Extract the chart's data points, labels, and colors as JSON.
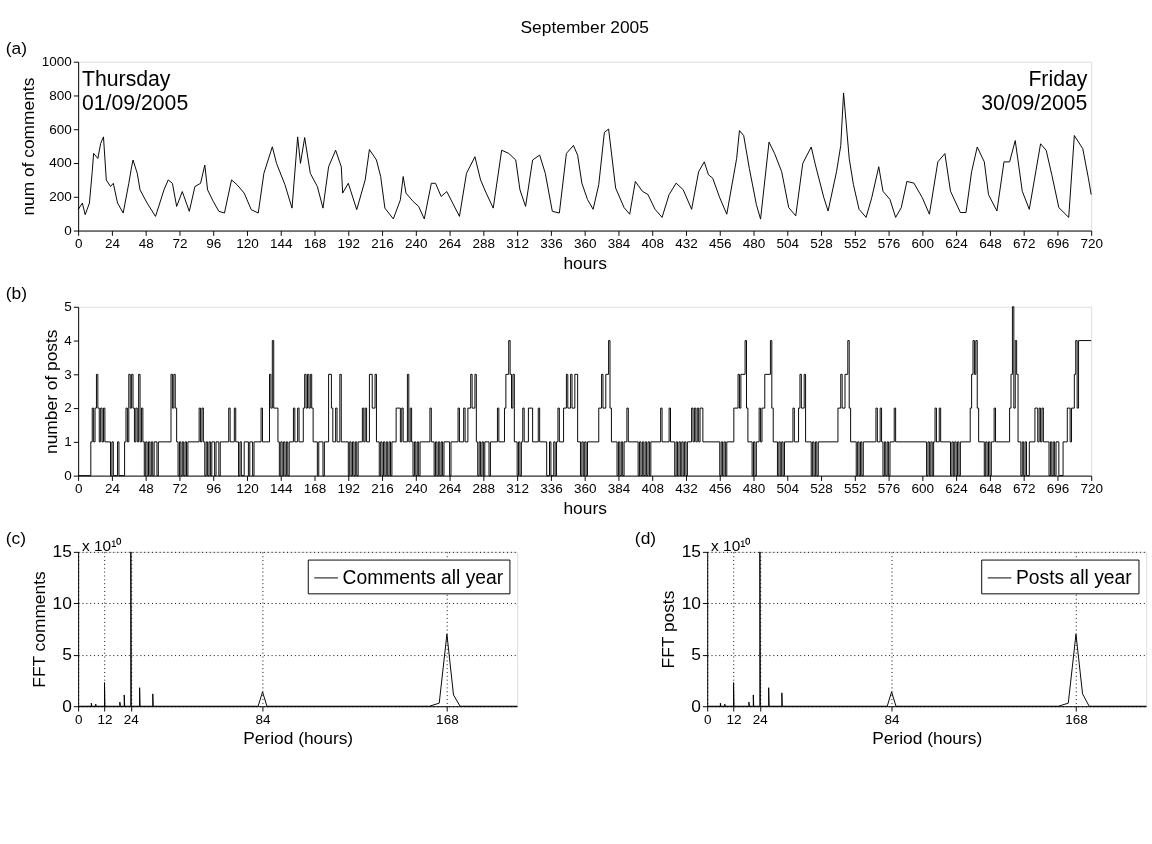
{
  "chart_data": [
    {
      "type": "line",
      "title": "September 2005",
      "xlabel": "hours",
      "ylabel": "num of comments",
      "color": "#000000",
      "annotations": [
        "(a)",
        "Thursday\n01/09/2005",
        "Friday\n30/09/2005"
      ],
      "x": [
        0,
        3,
        5,
        8,
        10,
        11,
        14,
        16,
        18,
        20,
        23,
        25,
        28,
        32,
        36,
        38,
        39,
        42,
        44,
        49,
        55,
        61,
        64,
        67,
        70,
        74,
        79,
        83,
        87,
        90,
        92,
        96,
        100,
        104,
        109,
        113,
        118,
        123,
        128,
        132,
        138,
        141,
        147,
        152,
        156,
        158,
        161,
        165,
        170,
        174,
        178,
        183,
        187,
        188,
        192,
        198,
        204,
        207,
        212,
        215,
        218,
        224,
        229,
        231,
        233,
        238,
        242,
        246,
        251,
        254,
        258,
        262,
        271,
        276,
        282,
        286,
        290,
        295,
        301,
        306,
        311,
        314,
        318,
        323,
        328,
        332,
        337,
        342,
        347,
        352,
        355,
        358,
        362,
        366,
        370,
        374,
        377,
        382,
        388,
        392,
        396,
        401,
        405,
        410,
        415,
        420,
        425,
        430,
        436,
        441,
        445,
        448,
        451,
        456,
        461,
        468,
        470,
        473,
        477,
        482,
        485,
        491,
        495,
        500,
        505,
        510,
        515,
        521,
        524,
        530,
        533,
        539,
        542,
        544,
        548,
        551,
        555,
        560,
        564,
        569,
        572,
        577,
        581,
        585,
        589,
        594,
        600,
        605,
        611,
        616,
        620,
        627,
        631,
        635,
        639,
        644,
        647,
        653,
        658,
        662,
        666,
        671,
        676,
        684,
        688,
        692,
        697,
        704,
        708,
        714,
        718,
        720
      ],
      "values": [
        124,
        163,
        94,
        163,
        349,
        457,
        427,
        516,
        555,
        300,
        261,
        280,
        163,
        104,
        280,
        378,
        418,
        339,
        241,
        163,
        84,
        241,
        300,
        280,
        143,
        231,
        114,
        261,
        280,
        388,
        241,
        173,
        114,
        104,
        300,
        271,
        222,
        124,
        104,
        339,
        496,
        398,
        271,
        133,
        555,
        398,
        551,
        339,
        261,
        133,
        378,
        476,
        378,
        222,
        280,
        124,
        300,
        480,
        418,
        320,
        133,
        69,
        182,
        320,
        222,
        173,
        143,
        69,
        280,
        280,
        202,
        231,
        84,
        339,
        437,
        300,
        222,
        133,
        476,
        457,
        418,
        241,
        143,
        418,
        447,
        339,
        114,
        104,
        457,
        504,
        446,
        281,
        184,
        126,
        272,
        582,
        601,
        252,
        136,
        97,
        291,
        233,
        213,
        126,
        78,
        213,
        281,
        242,
        126,
        349,
        407,
        330,
        310,
        194,
        97,
        427,
        592,
        563,
        369,
        155,
        68,
        524,
        456,
        349,
        136,
        87,
        398,
        495,
        388,
        194,
        116,
        349,
        504,
        815,
        427,
        272,
        126,
        78,
        194,
        378,
        233,
        184,
        78,
        136,
        291,
        281,
        194,
        97,
        407,
        456,
        233,
        107,
        107,
        349,
        495,
        407,
        213,
        116,
        407,
        407,
        533,
        233,
        126,
        514,
        475,
        330,
        136,
        78,
        563,
        485,
        310,
        213
      ],
      "xlim": [
        0,
        720
      ],
      "xticks": [
        0,
        24,
        48,
        72,
        96,
        120,
        144,
        168,
        192,
        216,
        240,
        264,
        288,
        312,
        336,
        360,
        384,
        408,
        432,
        456,
        480,
        504,
        528,
        552,
        576,
        600,
        624,
        648,
        672,
        696,
        720
      ],
      "ylim": [
        0,
        1000
      ],
      "yticks": [
        0,
        200,
        400,
        600,
        800,
        1000
      ]
    },
    {
      "type": "step",
      "xlabel": "hours",
      "ylabel": "number of posts",
      "color": "#000000",
      "annotations": [
        "(b)"
      ],
      "x": [
        0,
        9,
        10,
        11,
        12,
        13,
        14,
        15,
        16,
        17,
        18,
        19,
        23,
        24,
        25,
        28,
        29,
        33,
        34,
        35,
        36,
        37,
        38,
        39,
        40,
        41,
        42,
        43,
        44,
        45,
        46,
        47,
        48,
        49,
        50,
        51,
        52,
        53,
        54,
        56,
        57,
        66,
        67,
        68,
        69,
        70,
        71,
        72,
        73,
        74,
        75,
        76,
        77,
        78,
        86,
        87,
        88,
        89,
        90,
        91,
        92,
        93,
        94,
        95,
        97,
        98,
        100,
        101,
        107,
        108,
        111,
        112,
        114,
        115,
        116,
        118,
        121,
        122,
        124,
        125,
        130,
        131,
        136,
        137,
        138,
        139,
        142,
        143,
        144,
        145,
        146,
        147,
        148,
        149,
        150,
        153,
        154,
        156,
        157,
        160,
        161,
        162,
        163,
        164,
        165,
        166,
        167,
        170,
        171,
        174,
        175,
        178,
        180,
        181,
        183,
        184,
        186,
        187,
        192,
        193,
        194,
        195,
        196,
        197,
        198,
        199,
        202,
        203,
        204,
        205,
        207,
        209,
        211,
        212,
        214,
        215,
        216,
        217,
        218,
        219,
        220,
        221,
        222,
        223,
        226,
        229,
        230,
        231,
        234,
        235,
        236,
        237,
        238,
        239,
        240,
        241,
        242,
        243,
        250,
        251,
        253,
        254,
        255,
        256,
        257,
        258,
        259,
        260,
        264,
        265,
        270,
        271,
        274,
        275,
        277,
        279,
        280,
        282,
        283,
        284,
        285,
        286,
        287,
        288,
        289,
        292,
        293,
        298,
        299,
        303,
        304,
        306,
        307,
        308,
        309,
        310,
        312,
        313,
        314,
        315,
        316,
        317,
        320,
        323,
        327,
        328,
        333,
        335,
        336,
        338,
        339,
        340,
        341,
        342,
        345,
        347,
        348,
        350,
        351,
        353,
        355,
        357,
        358,
        359,
        360,
        361,
        362,
        370,
        372,
        373,
        375,
        377,
        378,
        379,
        383,
        384,
        385,
        386,
        387,
        388,
        390,
        391,
        398,
        399,
        400,
        401,
        402,
        403,
        404,
        405,
        406,
        407,
        414,
        415,
        420,
        421,
        424,
        425,
        426,
        427,
        428,
        429,
        430,
        431,
        432,
        433,
        436,
        437,
        438,
        439,
        440,
        441,
        442,
        444,
        456,
        457,
        458,
        459,
        460,
        461,
        466,
        469,
        470,
        471,
        474,
        475,
        476,
        479,
        480,
        481,
        482,
        484,
        485,
        486,
        488,
        492,
        493,
        494,
        497,
        498,
        499,
        500,
        501,
        502,
        508,
        509,
        512,
        513,
        514,
        516,
        517,
        521,
        522,
        523,
        524,
        525,
        526,
        540,
        542,
        543,
        545,
        547,
        548,
        549,
        553,
        554,
        555,
        556,
        557,
        558,
        567,
        568,
        570,
        571,
        572,
        573,
        574,
        575,
        576,
        577,
        580,
        581,
        603,
        604,
        605,
        606,
        607,
        608,
        609,
        610,
        612,
        613,
        620,
        621,
        622,
        623,
        624,
        625,
        626,
        627,
        634,
        635,
        636,
        637,
        638,
        639,
        640,
        644,
        645,
        646,
        647,
        648,
        649,
        651,
        652,
        662,
        663,
        664,
        665,
        666,
        667,
        668,
        670,
        671,
        672,
        673,
        674,
        676,
        680,
        682,
        683,
        684,
        685,
        686,
        690,
        691,
        692,
        693,
        694,
        695,
        697,
        700,
        703,
        705,
        706,
        708,
        709,
        710,
        711,
        720
      ],
      "values": [
        0,
        1,
        2,
        1,
        2,
        3,
        2,
        1,
        2,
        1,
        2,
        1,
        0,
        1,
        0,
        1,
        0,
        1,
        2,
        1,
        3,
        2,
        3,
        2,
        1,
        2,
        1,
        3,
        1,
        2,
        1,
        0,
        1,
        0,
        1,
        0,
        1,
        0,
        1,
        0,
        1,
        3,
        2,
        3,
        2,
        1,
        0,
        1,
        0,
        1,
        0,
        1,
        0,
        1,
        2,
        1,
        2,
        1,
        0,
        1,
        0,
        1,
        0,
        1,
        0,
        1,
        0,
        1,
        2,
        1,
        2,
        1,
        0,
        1,
        0,
        1,
        0,
        1,
        0,
        1,
        2,
        1,
        3,
        2,
        4,
        2,
        1,
        0,
        1,
        0,
        1,
        0,
        1,
        0,
        1,
        2,
        1,
        2,
        1,
        2,
        3,
        2,
        3,
        2,
        3,
        2,
        1,
        0,
        1,
        0,
        1,
        3,
        2,
        1,
        2,
        1,
        3,
        1,
        0,
        1,
        0,
        1,
        0,
        1,
        0,
        1,
        2,
        1,
        2,
        1,
        3,
        2,
        3,
        1,
        0,
        1,
        0,
        1,
        0,
        1,
        0,
        1,
        0,
        1,
        2,
        1,
        2,
        1,
        3,
        1,
        2,
        1,
        0,
        1,
        0,
        1,
        0,
        1,
        2,
        1,
        0,
        1,
        0,
        1,
        0,
        1,
        0,
        1,
        0,
        1,
        2,
        1,
        2,
        1,
        2,
        3,
        2,
        3,
        1,
        0,
        1,
        0,
        1,
        0,
        1,
        0,
        1,
        2,
        1,
        2,
        3,
        4,
        3,
        2,
        3,
        1,
        0,
        1,
        0,
        1,
        2,
        1,
        2,
        1,
        2,
        1,
        0,
        1,
        0,
        1,
        0,
        1,
        2,
        1,
        2,
        3,
        2,
        3,
        2,
        3,
        1,
        0,
        1,
        0,
        1,
        0,
        1,
        2,
        3,
        2,
        3,
        4,
        2,
        1,
        0,
        1,
        0,
        1,
        0,
        1,
        2,
        1,
        0,
        1,
        0,
        1,
        0,
        1,
        0,
        1,
        0,
        1,
        2,
        1,
        2,
        1,
        0,
        1,
        0,
        1,
        0,
        1,
        0,
        1,
        0,
        1,
        2,
        1,
        2,
        1,
        2,
        1,
        2,
        1,
        0,
        1,
        0,
        1,
        0,
        1,
        2,
        3,
        2,
        3,
        4,
        2,
        1,
        0,
        1,
        0,
        1,
        2,
        1,
        2,
        3,
        4,
        2,
        1,
        0,
        1,
        0,
        1,
        0,
        1,
        2,
        1,
        2,
        3,
        2,
        3,
        1,
        0,
        1,
        0,
        1,
        0,
        1,
        2,
        3,
        2,
        3,
        4,
        2,
        1,
        0,
        1,
        0,
        1,
        0,
        1,
        2,
        1,
        2,
        1,
        0,
        1,
        0,
        1,
        0,
        1,
        2,
        1,
        0,
        1,
        0,
        1,
        0,
        1,
        2,
        1,
        2,
        1,
        0,
        1,
        0,
        1,
        0,
        1,
        0,
        1,
        2,
        3,
        4,
        3,
        4,
        2,
        1,
        0,
        1,
        0,
        1,
        0,
        1,
        2,
        1,
        2,
        3,
        5,
        2,
        4,
        3,
        1,
        0,
        1,
        0,
        1,
        0,
        1,
        2,
        1,
        2,
        1,
        2,
        1,
        0,
        1,
        0,
        1,
        0,
        1,
        0,
        1,
        2,
        1,
        2,
        3,
        4,
        2,
        4,
        4
      ],
      "xlim": [
        0,
        720
      ],
      "xticks": [
        0,
        24,
        48,
        72,
        96,
        120,
        144,
        168,
        192,
        216,
        240,
        264,
        288,
        312,
        336,
        360,
        384,
        408,
        432,
        456,
        480,
        504,
        528,
        552,
        576,
        600,
        624,
        648,
        672,
        696,
        720
      ],
      "ylim": [
        0,
        5
      ],
      "yticks": [
        0,
        1,
        2,
        3,
        4,
        5
      ]
    },
    {
      "type": "line",
      "xlabel": "Period (hours)",
      "ylabel": "FFT comments",
      "annotations": [
        "(c)",
        "x 10¹⁰"
      ],
      "series": [
        {
          "name": "Comments all year",
          "color": "#000000",
          "x": [
            0,
            6,
            6,
            6.2,
            8,
            8,
            8.2,
            12,
            12,
            12.2,
            19,
            19,
            19.2,
            21,
            21,
            21.2,
            24,
            24,
            24.2,
            28,
            28,
            28.2,
            34,
            34,
            34.2,
            82,
            84,
            86,
            160,
            164.5,
            168,
            171,
            174,
            200
          ],
          "values": [
            0,
            0,
            0.3,
            0,
            0,
            0.2,
            0,
            0,
            2.3,
            0,
            0,
            0.4,
            0,
            0,
            1.1,
            0,
            0,
            15,
            0,
            0,
            1.8,
            0,
            0,
            1.2,
            0,
            0,
            1.4,
            0,
            0,
            0.3,
            7,
            1.1,
            0,
            0
          ]
        }
      ],
      "xlim": [
        0,
        200
      ],
      "xticks": [
        0,
        12,
        24,
        84,
        168
      ],
      "ylim": [
        0,
        15
      ],
      "yticks": [
        0,
        5,
        10,
        15
      ],
      "grid": true,
      "legend": "top right"
    },
    {
      "type": "line",
      "xlabel": "Period (hours)",
      "ylabel": "FFT posts",
      "annotations": [
        "(d)",
        "x 10¹⁰"
      ],
      "series": [
        {
          "name": "Posts all year",
          "color": "#000000",
          "x": [
            0,
            6,
            6,
            6.2,
            8,
            8,
            8.2,
            12,
            12,
            12.2,
            19,
            19,
            19.2,
            21,
            21,
            21.2,
            24,
            24,
            24.2,
            28,
            28,
            28.2,
            34,
            34,
            34.2,
            82,
            84,
            86,
            160,
            164.5,
            168,
            171,
            174,
            200
          ],
          "values": [
            0,
            0,
            0.3,
            0,
            0,
            0.2,
            0,
            0,
            2.3,
            0,
            0,
            0.4,
            0,
            0,
            1.1,
            0,
            0,
            15,
            0,
            0,
            1.8,
            0,
            0,
            1.3,
            0,
            0,
            1.4,
            0,
            0,
            0.3,
            7,
            1.2,
            0,
            0
          ]
        }
      ],
      "xlim": [
        0,
        200
      ],
      "xticks": [
        0,
        12,
        24,
        84,
        168
      ],
      "ylim": [
        0,
        15
      ],
      "yticks": [
        0,
        5,
        10,
        15
      ],
      "grid": true,
      "legend": "top right"
    }
  ]
}
